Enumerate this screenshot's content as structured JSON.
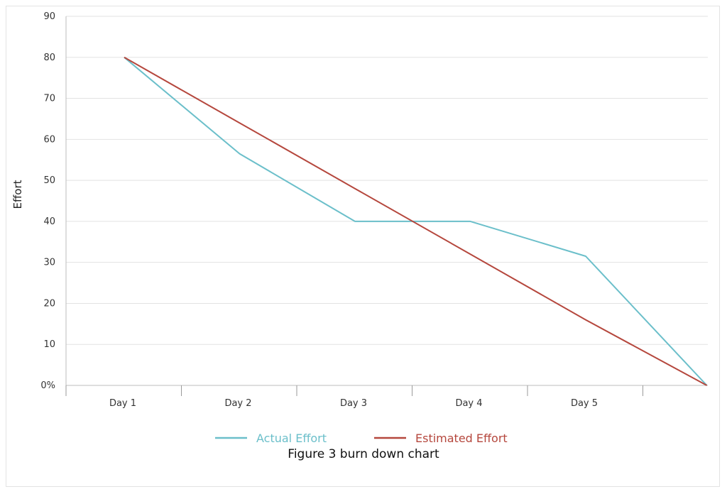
{
  "caption": "Figure 3 burn down chart",
  "chart_data": {
    "type": "line",
    "title": "",
    "xlabel": "",
    "ylabel": "Effort",
    "categories": [
      "Day 1",
      "Day 2",
      "Day 3",
      "Day 4",
      "Day 5"
    ],
    "x": [
      0,
      1,
      2,
      3,
      4,
      5.05
    ],
    "ylim": [
      0,
      90
    ],
    "yticks": [
      0,
      10,
      20,
      30,
      40,
      50,
      60,
      70,
      80,
      90
    ],
    "ytick_labels": [
      "0%",
      "10",
      "20",
      "30",
      "40",
      "50",
      "60",
      "70",
      "80",
      "90"
    ],
    "grid": true,
    "legend_position": "bottom",
    "series": [
      {
        "name": "Actual Effort",
        "color": "#6bbfca",
        "values": [
          80,
          56.5,
          40,
          40,
          31.5,
          0
        ]
      },
      {
        "name": "Estimated Effort",
        "color": "#b5473d",
        "values": [
          80,
          64,
          48,
          32,
          16,
          0
        ]
      }
    ]
  }
}
